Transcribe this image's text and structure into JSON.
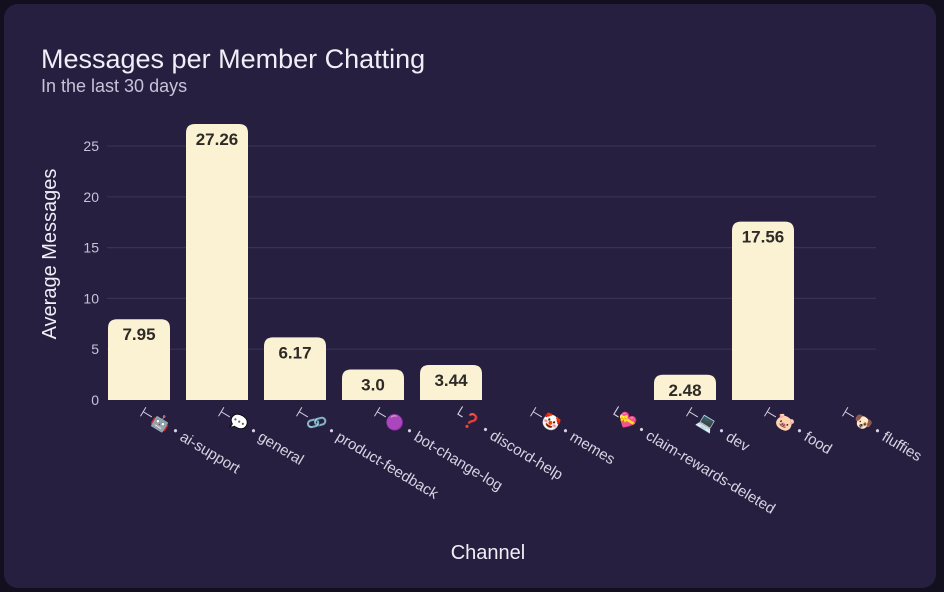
{
  "header": {
    "title": "Messages per Member Chatting",
    "subtitle": "In the last 30 days"
  },
  "colors": {
    "card_background": "#271f3f",
    "bar_fill": "#fbf2d3",
    "bar_label": "#2e2a25",
    "grid": "#3a3255",
    "text": "#f2eef8",
    "muted_text": "#c9c2d8"
  },
  "chart_data": {
    "type": "bar",
    "title": "Messages per Member Chatting",
    "subtitle": "In the last 30 days",
    "xlabel": "Channel",
    "ylabel": "Average Messages",
    "ylim": [
      0,
      25
    ],
    "yticks": [
      0,
      5,
      10,
      15,
      20,
      25
    ],
    "grid": true,
    "categories": [
      {
        "prefix": "⊢",
        "icon": "robot-icon",
        "glyph": "🤖",
        "label": "・ai-support"
      },
      {
        "prefix": "⊢",
        "icon": "speech-bubble-icon",
        "glyph": "💬",
        "label": "・general"
      },
      {
        "prefix": "⊢",
        "icon": "link-icon",
        "glyph": "🔗",
        "label": "・product-feedback"
      },
      {
        "prefix": "⊢",
        "icon": "purple-circle-icon",
        "glyph": "🟣",
        "label": "・bot-change-log"
      },
      {
        "prefix": "└",
        "icon": "question-mark-icon",
        "glyph": "❓",
        "label": "・discord-help"
      },
      {
        "prefix": "⊢",
        "icon": "clown-face-icon",
        "glyph": "🤡",
        "label": "・memes"
      },
      {
        "prefix": "└",
        "icon": "heart-gift-icon",
        "glyph": "💝",
        "label": "・claim-rewards-deleted"
      },
      {
        "prefix": "⊢",
        "icon": "laptop-icon",
        "glyph": "💻",
        "label": "・dev"
      },
      {
        "prefix": "⊢",
        "icon": "pig-face-icon",
        "glyph": "🐷",
        "label": "・food"
      },
      {
        "prefix": "⊢",
        "icon": "dog-face-icon",
        "glyph": "🐶",
        "label": "・fluffies"
      }
    ],
    "values": [
      7.95,
      27.26,
      6.17,
      3.0,
      3.44,
      null,
      null,
      2.48,
      17.56,
      null
    ],
    "value_labels": [
      "7.95",
      "27.26",
      "6.17",
      "3.0",
      "3.44",
      "",
      "",
      "2.48",
      "17.56",
      ""
    ]
  }
}
